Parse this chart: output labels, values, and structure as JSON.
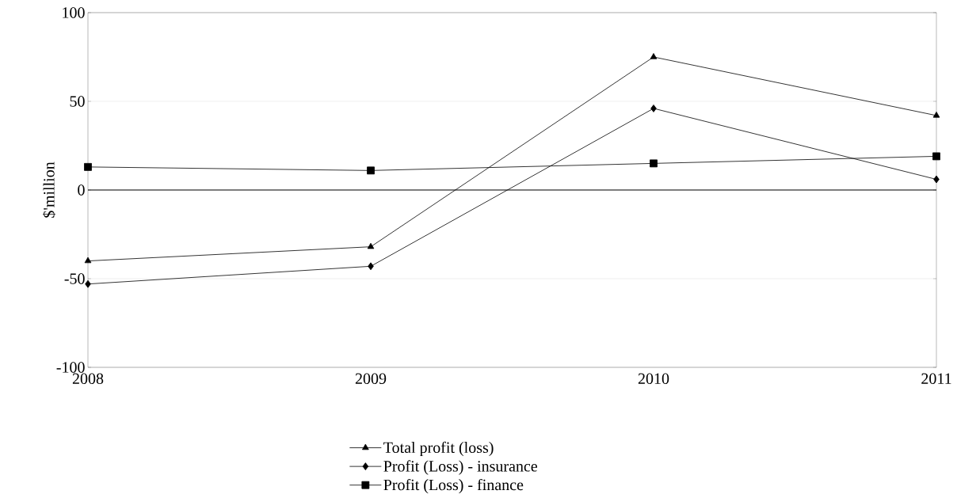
{
  "chart_data": {
    "type": "line",
    "ylabel": "$'million",
    "categories": [
      "2008",
      "2009",
      "2010",
      "2011"
    ],
    "series": [
      {
        "name": "Total profit (loss)",
        "color": "#000000",
        "marker": "triangle",
        "values": [
          -40,
          -32,
          75,
          42
        ]
      },
      {
        "name": "Profit (Loss) - insurance",
        "color": "#000000",
        "marker": "diamond",
        "values": [
          -53,
          -43,
          46,
          6
        ]
      },
      {
        "name": "Profit (Loss) - finance",
        "color": "#000000",
        "marker": "square",
        "values": [
          13,
          11,
          15,
          19
        ]
      }
    ],
    "ylim": [
      -100,
      100
    ],
    "yticks": [
      -100,
      -50,
      0,
      50,
      100
    ],
    "grid": "y",
    "legend": "bottom",
    "line_style": "solid",
    "ref_lines": [
      {
        "axis": "y",
        "value": 0,
        "color": "#000000"
      }
    ]
  }
}
